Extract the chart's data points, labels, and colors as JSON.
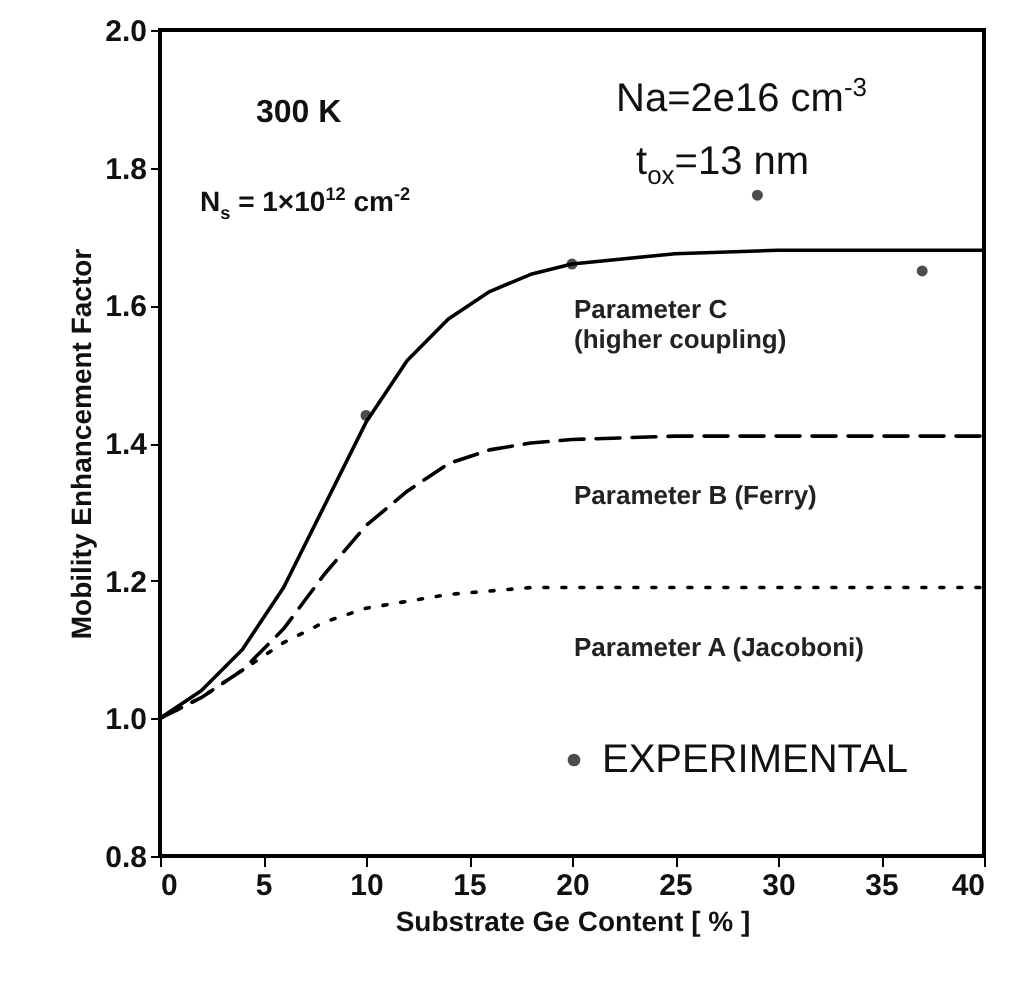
{
  "chart_data": {
    "type": "line",
    "xlabel": "Substrate Ge Content  [ % ]",
    "ylabel": "Mobility Enhancement Factor",
    "x": [
      0,
      2,
      4,
      6,
      8,
      10,
      12,
      14,
      16,
      18,
      20,
      25,
      30,
      40
    ],
    "series": [
      {
        "name": "Parameter C\n(higher coupling)",
        "color": "#000000",
        "line_style": "solid",
        "values": [
          1.0,
          1.04,
          1.1,
          1.19,
          1.31,
          1.43,
          1.52,
          1.58,
          1.62,
          1.645,
          1.66,
          1.675,
          1.68,
          1.68
        ]
      },
      {
        "name": "Parameter B (Ferry)",
        "color": "#000000",
        "line_style": "dashed",
        "values": [
          1.0,
          1.03,
          1.07,
          1.13,
          1.21,
          1.28,
          1.33,
          1.37,
          1.39,
          1.4,
          1.405,
          1.41,
          1.41,
          1.41
        ]
      },
      {
        "name": "Parameter A (Jacoboni)",
        "color": "#000000",
        "line_style": "dotted",
        "values": [
          1.0,
          1.03,
          1.07,
          1.11,
          1.14,
          1.16,
          1.17,
          1.18,
          1.185,
          1.19,
          1.19,
          1.19,
          1.19,
          1.19
        ]
      },
      {
        "name": "EXPERIMENTAL",
        "type": "scatter",
        "marker": "circle",
        "color": "#000000",
        "x": [
          10,
          20,
          29,
          37
        ],
        "values": [
          1.44,
          1.66,
          1.76,
          1.65
        ]
      }
    ],
    "xlim": [
      0,
      40
    ],
    "xticks": [
      0,
      5,
      10,
      15,
      20,
      25,
      30,
      35,
      40
    ],
    "ylim": [
      0.8,
      2.0
    ],
    "yticks": [
      {
        "value": 0.8,
        "label": "0.8"
      },
      {
        "value": 1.0,
        "label": "1.0"
      },
      {
        "value": 1.2,
        "label": "1.2"
      },
      {
        "value": 1.4,
        "label": "1.4"
      },
      {
        "value": 1.6,
        "label": "1.6"
      },
      {
        "value": 1.8,
        "label": "1.8"
      },
      {
        "value": 2.0,
        "label": "2.0"
      }
    ],
    "legend": "bottom right",
    "annotations": [
      "300 K",
      "N$_{s}$ = 1×10$^{12}$ cm$^{-2}$",
      "Na=2e16 cm$^{-3}$",
      "t$_{ox}$=13 nm"
    ]
  }
}
